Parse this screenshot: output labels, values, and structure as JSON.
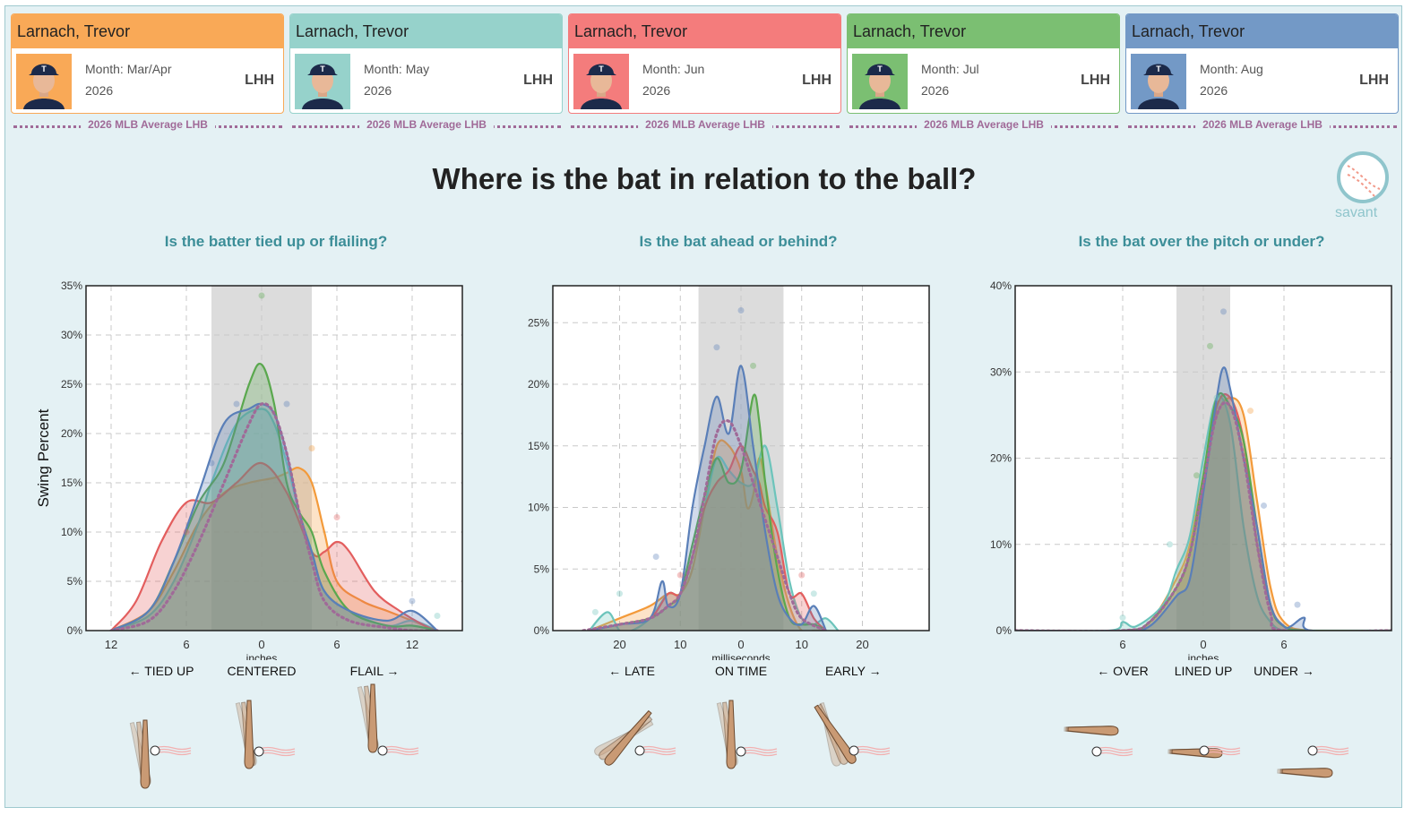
{
  "cards": [
    {
      "name": "Larnach, Trevor",
      "month_label": "Month: Mar/Apr",
      "year": "2026",
      "hand": "LHH",
      "color": "#f9a957"
    },
    {
      "name": "Larnach, Trevor",
      "month_label": "Month: May",
      "year": "2026",
      "hand": "LHH",
      "color": "#96d2cb"
    },
    {
      "name": "Larnach, Trevor",
      "month_label": "Month: Jun",
      "year": "2026",
      "hand": "LHH",
      "color": "#f47c7c"
    },
    {
      "name": "Larnach, Trevor",
      "month_label": "Month: Jul",
      "year": "2026",
      "hand": "LHH",
      "color": "#7bbf72"
    },
    {
      "name": "Larnach, Trevor",
      "month_label": "Month: Aug",
      "year": "2026",
      "hand": "LHH",
      "color": "#7399c6"
    }
  ],
  "average_label": "2026 MLB Average LHB",
  "title": "Where is the bat in relation to the ball?",
  "logo_text": "savant",
  "chart_data": [
    {
      "type": "area",
      "title": "Is the batter tied up or flailing?",
      "xlabel": "inches",
      "ylabel": "Swing Percent",
      "xlim": [
        14,
        -16
      ],
      "ylim": [
        0,
        35
      ],
      "x_ticks": [
        12,
        6,
        0,
        -6,
        -12
      ],
      "x_tick_labels": [
        "12",
        "6",
        "0",
        "6",
        "12"
      ],
      "y_ticks": [
        0,
        5,
        10,
        15,
        20,
        25,
        30,
        35
      ],
      "y_tick_labels": [
        "0%",
        "5%",
        "10%",
        "15%",
        "20%",
        "25%",
        "30%",
        "35%"
      ],
      "shaded_range": [
        4,
        -4
      ],
      "zone_labels": [
        {
          "x": 8,
          "text": "← TIED UP"
        },
        {
          "x": 0,
          "text": "CENTERED"
        },
        {
          "x": -9,
          "text": "FLAIL →"
        }
      ],
      "series": [
        {
          "color": "#f39a3a",
          "x": [
            12,
            9,
            7,
            5,
            3,
            1,
            -1,
            -2,
            -3,
            -4,
            -5,
            -6,
            -8,
            -10,
            -12,
            -14
          ],
          "y": [
            0,
            2,
            6,
            11,
            14,
            15,
            15.5,
            16,
            16.5,
            15,
            10,
            5,
            3,
            2,
            1,
            0
          ]
        },
        {
          "color": "#6cc4bb",
          "x": [
            12,
            9,
            7,
            5,
            4,
            2,
            0,
            -1,
            -2,
            -3,
            -4,
            -5,
            -7,
            -10,
            -12,
            -14
          ],
          "y": [
            0,
            1.5,
            5,
            11,
            15,
            21,
            22.5,
            21,
            17,
            12,
            8,
            4,
            2,
            0.5,
            1,
            0
          ]
        },
        {
          "color": "#e35e5e",
          "x": [
            12,
            10,
            8,
            6,
            4,
            2,
            0,
            -2,
            -4,
            -5,
            -6,
            -7,
            -9,
            -11,
            -13,
            -14
          ],
          "y": [
            0,
            3,
            9,
            13,
            13,
            15,
            17,
            14,
            8,
            8,
            9,
            8,
            4,
            2,
            0.5,
            0
          ]
        },
        {
          "color": "#5aa84e",
          "x": [
            12,
            9,
            7,
            5,
            3,
            1,
            0,
            -1,
            -2,
            -3,
            -4,
            -5,
            -7,
            -10,
            -12,
            -14
          ],
          "y": [
            0,
            2,
            7,
            13,
            17,
            25,
            27,
            23,
            15,
            12,
            10,
            6,
            2,
            0.5,
            0.5,
            0
          ]
        },
        {
          "color": "#5a7fb8",
          "x": [
            12,
            9,
            7,
            5,
            3,
            1,
            0,
            -1,
            -2,
            -3,
            -4,
            -5,
            -7,
            -10,
            -12,
            -14
          ],
          "y": [
            0,
            2,
            7,
            14,
            21,
            22.5,
            23,
            22,
            18,
            12,
            8,
            4,
            2,
            1,
            2,
            0
          ]
        }
      ],
      "average": {
        "x": [
          12,
          9,
          7,
          5,
          3,
          1,
          0,
          -1,
          -2,
          -3,
          -4,
          -5,
          -7,
          -10,
          -12,
          -14
        ],
        "y": [
          0,
          1,
          4,
          9,
          15,
          21,
          23,
          22,
          18,
          12,
          7,
          3,
          1,
          0.3,
          0,
          0
        ]
      },
      "points": [
        {
          "x": 0,
          "y": 34,
          "color": "#5aa84e"
        },
        {
          "x": 2,
          "y": 23,
          "color": "#5a7fb8"
        },
        {
          "x": -2,
          "y": 23,
          "color": "#5a7fb8"
        },
        {
          "x": -4,
          "y": 18.5,
          "color": "#f39a3a"
        },
        {
          "x": 6,
          "y": 10,
          "color": "#e35e5e"
        },
        {
          "x": -6,
          "y": 11.5,
          "color": "#e35e5e"
        },
        {
          "x": -12,
          "y": 3,
          "color": "#5a7fb8"
        },
        {
          "x": -14,
          "y": 1.5,
          "color": "#6cc4bb"
        },
        {
          "x": 4,
          "y": 17,
          "color": "#5a7fb8"
        }
      ]
    },
    {
      "type": "area",
      "title": "Is the bat ahead or behind?",
      "xlabel": "milliseconds",
      "xlim": [
        31,
        -31
      ],
      "ylim": [
        0,
        28
      ],
      "x_ticks": [
        20,
        10,
        0,
        -10,
        -20
      ],
      "x_tick_labels": [
        "20",
        "10",
        "0",
        "10",
        "20"
      ],
      "y_ticks": [
        0,
        5,
        10,
        15,
        20,
        25
      ],
      "y_tick_labels": [
        "0%",
        "5%",
        "10%",
        "15%",
        "20%",
        "25%"
      ],
      "shaded_range": [
        7,
        -7
      ],
      "zone_labels": [
        {
          "x": 18,
          "text": "← LATE"
        },
        {
          "x": 0,
          "text": "ON TIME"
        },
        {
          "x": -18.5,
          "text": "EARLY →"
        }
      ],
      "series": [
        {
          "color": "#f39a3a",
          "x": [
            25,
            20,
            15,
            12,
            10,
            8,
            6,
            4,
            2,
            0,
            -1,
            -2,
            -3,
            -4,
            -6,
            -8,
            -10,
            -12,
            -14
          ],
          "y": [
            0,
            1,
            2,
            3,
            3,
            5,
            10,
            15,
            15,
            13,
            10,
            11,
            14,
            12,
            6,
            2,
            0,
            0,
            0
          ]
        },
        {
          "color": "#6cc4bb",
          "x": [
            25,
            22,
            20,
            18,
            15,
            12,
            10,
            8,
            6,
            4,
            2,
            0,
            -2,
            -4,
            -6,
            -8,
            -10,
            -12,
            -14,
            -16
          ],
          "y": [
            0,
            1.5,
            0,
            0,
            1,
            3,
            3,
            6,
            10,
            14,
            13,
            12,
            12,
            15,
            10,
            4,
            1,
            0.5,
            1,
            0
          ]
        },
        {
          "color": "#e35e5e",
          "x": [
            25,
            20,
            15,
            12,
            10,
            8,
            6,
            4,
            2,
            0,
            -2,
            -3,
            -4,
            -6,
            -8,
            -10,
            -12,
            -14
          ],
          "y": [
            0,
            0.5,
            1,
            3,
            3,
            6,
            10,
            12,
            13,
            15,
            13,
            12,
            10,
            8,
            3,
            3,
            1,
            0
          ]
        },
        {
          "color": "#5aa84e",
          "x": [
            25,
            20,
            15,
            12,
            10,
            8,
            6,
            4,
            2,
            0,
            -2,
            -3,
            -4,
            -6,
            -8,
            -10,
            -12,
            -14
          ],
          "y": [
            0,
            0.5,
            1,
            2,
            3,
            7,
            11,
            14,
            12,
            13,
            19,
            17,
            12,
            5,
            1,
            0.5,
            0.5,
            0
          ]
        },
        {
          "color": "#5a7fb8",
          "x": [
            25,
            20,
            15,
            13,
            12,
            10,
            8,
            6,
            4,
            2,
            0,
            -2,
            -4,
            -6,
            -8,
            -10,
            -12,
            -14
          ],
          "y": [
            0,
            0.5,
            1,
            4,
            2,
            3,
            10,
            15,
            19,
            16,
            21.5,
            15,
            8,
            3,
            1,
            0.5,
            2,
            0
          ]
        }
      ],
      "average": {
        "x": [
          26,
          20,
          15,
          12,
          10,
          8,
          6,
          4,
          2,
          0,
          -2,
          -4,
          -6,
          -8,
          -10,
          -14
        ],
        "y": [
          0,
          0.5,
          1,
          2,
          3,
          6,
          11,
          16,
          17,
          15,
          12,
          9,
          6,
          3,
          1,
          0
        ]
      },
      "points": [
        {
          "x": 0,
          "y": 26,
          "color": "#5a7fb8"
        },
        {
          "x": 4,
          "y": 23,
          "color": "#5a7fb8"
        },
        {
          "x": -2,
          "y": 21.5,
          "color": "#5aa84e"
        },
        {
          "x": -10,
          "y": 4.5,
          "color": "#e35e5e"
        },
        {
          "x": -12,
          "y": 3,
          "color": "#6cc4bb"
        },
        {
          "x": 20,
          "y": 3,
          "color": "#6cc4bb"
        },
        {
          "x": 14,
          "y": 6,
          "color": "#5a7fb8"
        },
        {
          "x": 10,
          "y": 4.5,
          "color": "#e35e5e"
        },
        {
          "x": 24,
          "y": 1.5,
          "color": "#6cc4bb"
        }
      ]
    },
    {
      "type": "area",
      "title": "Is the bat over the pitch or under?",
      "xlabel": "inches",
      "xlim": [
        -14,
        14
      ],
      "ylim": [
        0,
        40
      ],
      "x_ticks": [
        -6,
        0,
        6
      ],
      "x_tick_labels": [
        "6",
        "0",
        "6"
      ],
      "y_ticks": [
        0,
        10,
        20,
        30,
        40
      ],
      "y_tick_labels": [
        "0%",
        "10%",
        "20%",
        "30%",
        "40%"
      ],
      "shaded_range": [
        -2,
        2
      ],
      "zone_labels": [
        {
          "x": -6,
          "text": "← OVER"
        },
        {
          "x": 0,
          "text": "LINED UP"
        },
        {
          "x": 6,
          "text": "UNDER →"
        }
      ],
      "series": [
        {
          "color": "#f39a3a",
          "x": [
            -14,
            -6,
            -4,
            -2,
            -1,
            0,
            1,
            2,
            3,
            4,
            5,
            6,
            8,
            14
          ],
          "y": [
            0,
            0,
            1,
            6,
            10,
            18,
            25,
            27,
            25,
            15,
            5,
            1,
            0,
            0
          ]
        },
        {
          "color": "#6cc4bb",
          "x": [
            -14,
            -7,
            -6,
            -5,
            -3,
            -2,
            -1,
            0,
            1,
            2,
            3,
            4,
            5,
            6,
            8,
            14
          ],
          "y": [
            0,
            0,
            1,
            0.5,
            3,
            7,
            11,
            20,
            27,
            24,
            12,
            4,
            1,
            0,
            0,
            0
          ]
        },
        {
          "color": "#e35e5e",
          "x": [
            -14,
            -6,
            -4,
            -2,
            -1,
            0,
            1,
            2,
            3,
            4,
            5,
            6,
            8,
            14
          ],
          "y": [
            0,
            0,
            1,
            5,
            9,
            17,
            26,
            27,
            22,
            10,
            3,
            0.5,
            0,
            0
          ]
        },
        {
          "color": "#5aa84e",
          "x": [
            -14,
            -6,
            -4,
            -2,
            -1,
            0,
            1,
            2,
            3,
            4,
            5,
            6,
            8,
            14
          ],
          "y": [
            0,
            0,
            1,
            5,
            9,
            18,
            27,
            26,
            22,
            12,
            3,
            0.5,
            0,
            0
          ]
        },
        {
          "color": "#5a7fb8",
          "x": [
            -14,
            -6,
            -4,
            -2,
            -1,
            0,
            1,
            1.5,
            2,
            3,
            4,
            5,
            6,
            6.5,
            7.5,
            8,
            14
          ],
          "y": [
            0,
            0,
            0.5,
            4,
            6,
            16,
            27,
            30.5,
            28,
            20,
            12,
            3,
            0.5,
            0.5,
            1.5,
            0,
            0
          ]
        }
      ],
      "average": {
        "x": [
          -14,
          -6,
          -4,
          -2,
          -1,
          0,
          1,
          2,
          3,
          4,
          5,
          6,
          14
        ],
        "y": [
          0,
          0,
          1,
          5,
          9,
          17,
          25,
          26,
          20,
          10,
          2,
          0,
          0
        ]
      },
      "points": [
        {
          "x": 1.5,
          "y": 37,
          "color": "#5a7fb8"
        },
        {
          "x": 0.5,
          "y": 33,
          "color": "#5aa84e"
        },
        {
          "x": 3.5,
          "y": 25.5,
          "color": "#f39a3a"
        },
        {
          "x": 4.5,
          "y": 14.5,
          "color": "#5a7fb8"
        },
        {
          "x": -0.5,
          "y": 18,
          "color": "#5aa84e"
        },
        {
          "x": -2.5,
          "y": 10,
          "color": "#6cc4bb"
        },
        {
          "x": 7,
          "y": 3,
          "color": "#5a7fb8"
        },
        {
          "x": -6,
          "y": 1.5,
          "color": "#6cc4bb"
        },
        {
          "x": 1,
          "y": 27,
          "color": "#6cc4bb"
        }
      ]
    }
  ]
}
